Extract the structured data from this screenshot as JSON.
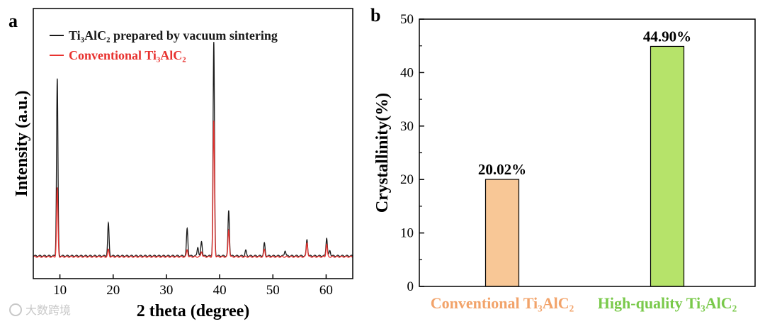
{
  "watermark": "大数跨境",
  "chart_data": [
    {
      "panel": "a",
      "type": "line",
      "xlabel": "2 theta (degree)",
      "ylabel": "Intensity (a.u.)",
      "xlim": [
        5,
        65
      ],
      "xticks": [
        10,
        20,
        30,
        40,
        50,
        60
      ],
      "ylim": [
        0,
        100
      ],
      "series": [
        {
          "name": "Ti₃AlC₂ prepared by vacuum sintering",
          "color": "#1a1a1a",
          "baseline": 2,
          "peaks": [
            {
              "x": 9.5,
              "y": 98
            },
            {
              "x": 19.1,
              "y": 18
            },
            {
              "x": 33.9,
              "y": 15
            },
            {
              "x": 35.9,
              "y": 5
            },
            {
              "x": 36.6,
              "y": 8
            },
            {
              "x": 38.9,
              "y": 118
            },
            {
              "x": 41.7,
              "y": 25
            },
            {
              "x": 44.9,
              "y": 3
            },
            {
              "x": 48.4,
              "y": 7
            },
            {
              "x": 52.3,
              "y": 3
            },
            {
              "x": 56.4,
              "y": 9
            },
            {
              "x": 60.1,
              "y": 10
            },
            {
              "x": 60.7,
              "y": 3
            }
          ]
        },
        {
          "name": "Conventional Ti₃AlC₂",
          "color": "#e8322f",
          "baseline": 1.5,
          "peaks": [
            {
              "x": 9.5,
              "y": 38
            },
            {
              "x": 19.1,
              "y": 4
            },
            {
              "x": 33.9,
              "y": 4
            },
            {
              "x": 36.6,
              "y": 3
            },
            {
              "x": 38.9,
              "y": 75
            },
            {
              "x": 41.7,
              "y": 15
            },
            {
              "x": 48.4,
              "y": 4
            },
            {
              "x": 56.4,
              "y": 8
            },
            {
              "x": 60.1,
              "y": 7
            }
          ]
        }
      ]
    },
    {
      "panel": "b",
      "type": "bar",
      "ylabel": "Crystallinity(%)",
      "ylim": [
        0,
        50
      ],
      "yticks": [
        0,
        10,
        20,
        30,
        40,
        50
      ],
      "categories": [
        "Conventional Ti₃AlC₂",
        "High-quality Ti₃AlC₂"
      ],
      "values": [
        20.02,
        44.9
      ],
      "value_labels": [
        "20.02%",
        "44.90%"
      ],
      "bar_colors": [
        "#f8c796",
        "#b6e36a"
      ],
      "label_colors": [
        "#f2a36a",
        "#79c94a"
      ]
    }
  ]
}
